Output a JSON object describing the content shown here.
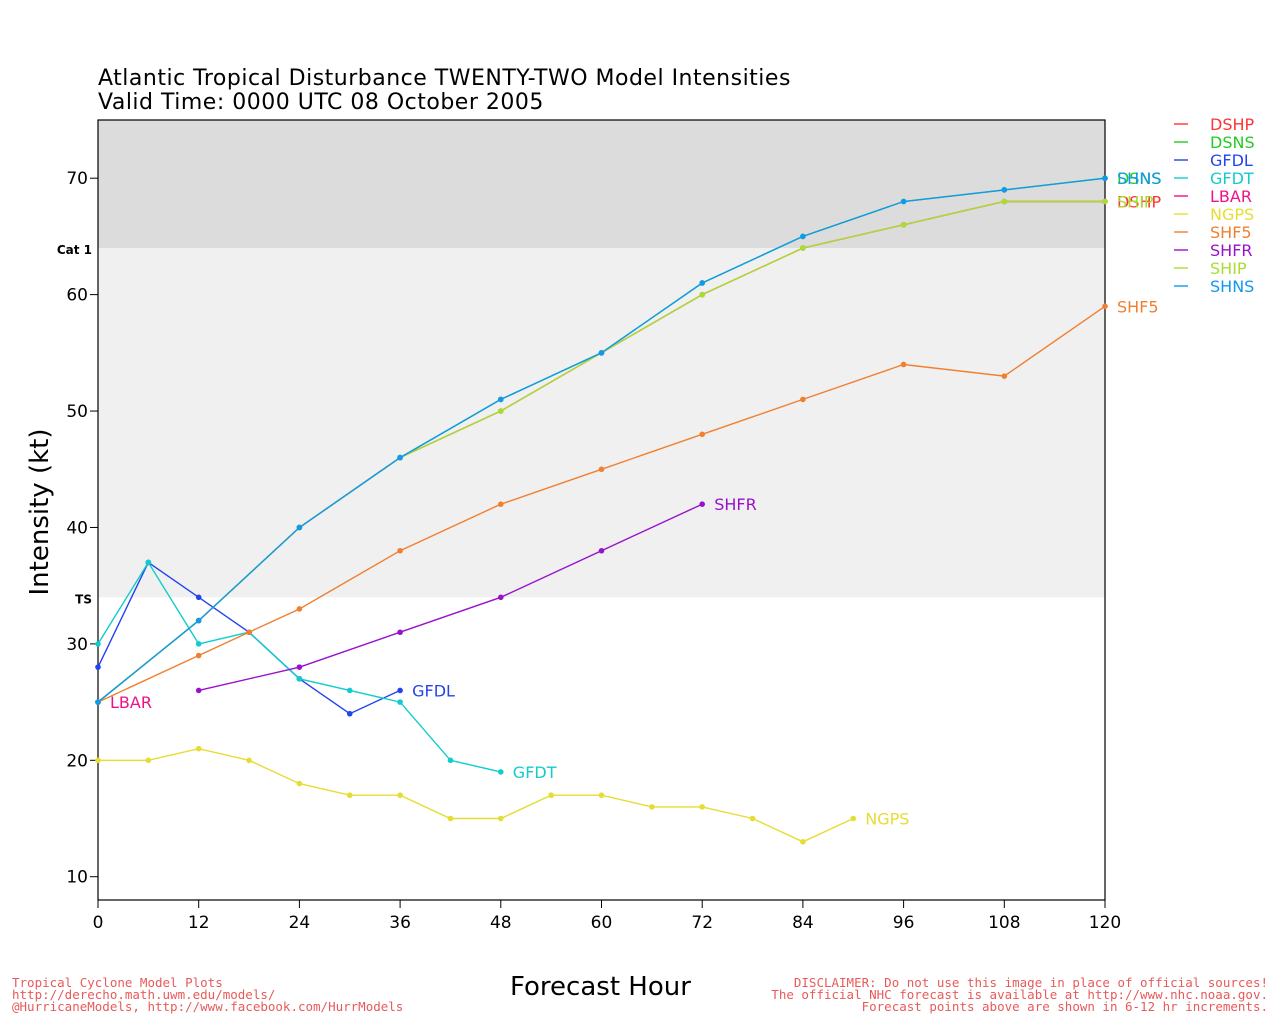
{
  "title": "Atlantic Tropical Disturbance TWENTY-TWO Model Intensities",
  "subtitle": "Valid Time: 0000 UTC 08 October 2005",
  "footer_left": [
    "Tropical Cyclone Model Plots",
    "http://derecho.math.uwm.edu/models/",
    "@HurricaneModels, http://www.facebook.com/HurrModels"
  ],
  "footer_right": [
    "DISCLAIMER: Do not use this image in place of official sources!",
    "The official NHC forecast is available at http://www.nhc.noaa.gov.",
    "Forecast points above are shown in 6-12 hr increments."
  ],
  "colors": {
    "band_cat1": "#dcdcdc",
    "band_ts": "#f0f0f0",
    "footer": "#e85a5a"
  },
  "chart_data": {
    "type": "line",
    "title": "Atlantic Tropical Disturbance TWENTY-TWO Model Intensities",
    "subtitle": "Valid Time: 0000 UTC 08 October 2005",
    "xlabel": "Forecast Hour",
    "ylabel": "Intensity (kt)",
    "xlim": [
      0,
      120
    ],
    "ylim": [
      8,
      75
    ],
    "xticks": [
      0,
      12,
      24,
      36,
      48,
      60,
      72,
      84,
      96,
      108,
      120
    ],
    "yticks": [
      10,
      20,
      30,
      40,
      50,
      60,
      70
    ],
    "bands": [
      {
        "label": "Cat 1",
        "from": 64,
        "to": 75
      },
      {
        "label": "TS",
        "from": 34,
        "to": 64
      }
    ],
    "series": [
      {
        "name": "DSHP",
        "color": "#ff3333",
        "label": "DSHP",
        "points": [
          [
            0,
            25
          ],
          [
            12,
            32
          ],
          [
            24,
            40
          ],
          [
            36,
            46
          ],
          [
            48,
            50
          ],
          [
            60,
            55
          ],
          [
            72,
            60
          ],
          [
            84,
            64
          ],
          [
            96,
            66
          ],
          [
            108,
            68
          ],
          [
            120,
            68
          ]
        ]
      },
      {
        "name": "DSNS",
        "color": "#22cc22",
        "label": "DSNS",
        "points": [
          [
            0,
            25
          ],
          [
            12,
            32
          ],
          [
            24,
            40
          ],
          [
            36,
            46
          ],
          [
            48,
            51
          ],
          [
            60,
            55
          ],
          [
            72,
            61
          ],
          [
            84,
            65
          ],
          [
            96,
            68
          ],
          [
            108,
            69
          ],
          [
            120,
            70
          ]
        ]
      },
      {
        "name": "GFDL",
        "color": "#2244ee",
        "label": "GFDL",
        "points": [
          [
            0,
            28
          ],
          [
            6,
            37
          ],
          [
            12,
            34
          ],
          [
            18,
            31
          ],
          [
            24,
            27
          ],
          [
            30,
            24
          ],
          [
            36,
            26
          ]
        ]
      },
      {
        "name": "GFDT",
        "color": "#11cccc",
        "label": "GFDT",
        "points": [
          [
            0,
            30
          ],
          [
            6,
            37
          ],
          [
            12,
            30
          ],
          [
            18,
            31
          ],
          [
            24,
            27
          ],
          [
            30,
            26
          ],
          [
            36,
            25
          ],
          [
            42,
            20
          ],
          [
            48,
            19
          ]
        ]
      },
      {
        "name": "LBAR",
        "color": "#ee1188",
        "label": "LBAR",
        "points": [
          [
            0,
            25
          ]
        ]
      },
      {
        "name": "NGPS",
        "color": "#e6dd33",
        "label": "NGPS",
        "points": [
          [
            0,
            20
          ],
          [
            6,
            20
          ],
          [
            12,
            21
          ],
          [
            18,
            20
          ],
          [
            24,
            18
          ],
          [
            30,
            17
          ],
          [
            36,
            17
          ],
          [
            42,
            15
          ],
          [
            48,
            15
          ],
          [
            54,
            17
          ],
          [
            60,
            17
          ],
          [
            66,
            16
          ],
          [
            72,
            16
          ],
          [
            78,
            15
          ],
          [
            84,
            13
          ],
          [
            90,
            15
          ]
        ]
      },
      {
        "name": "SHF5",
        "color": "#f08030",
        "label": "SHF5",
        "points": [
          [
            0,
            25
          ],
          [
            12,
            29
          ],
          [
            18,
            31
          ],
          [
            24,
            33
          ],
          [
            36,
            38
          ],
          [
            48,
            42
          ],
          [
            60,
            45
          ],
          [
            72,
            48
          ],
          [
            84,
            51
          ],
          [
            96,
            54
          ],
          [
            108,
            53
          ],
          [
            120,
            59
          ]
        ]
      },
      {
        "name": "SHFR",
        "color": "#9911cc",
        "label": "SHFR",
        "points": [
          [
            12,
            26
          ],
          [
            24,
            28
          ],
          [
            36,
            31
          ],
          [
            48,
            34
          ],
          [
            60,
            38
          ],
          [
            72,
            42
          ]
        ]
      },
      {
        "name": "SHIP",
        "color": "#aadd33",
        "label": "SHIP",
        "points": [
          [
            0,
            25
          ],
          [
            12,
            32
          ],
          [
            24,
            40
          ],
          [
            36,
            46
          ],
          [
            48,
            50
          ],
          [
            60,
            55
          ],
          [
            72,
            60
          ],
          [
            84,
            64
          ],
          [
            96,
            66
          ],
          [
            108,
            68
          ],
          [
            120,
            68
          ]
        ]
      },
      {
        "name": "SHNS",
        "color": "#1199ee",
        "label": "SHNS",
        "points": [
          [
            0,
            25
          ],
          [
            12,
            32
          ],
          [
            24,
            40
          ],
          [
            36,
            46
          ],
          [
            48,
            51
          ],
          [
            60,
            55
          ],
          [
            72,
            61
          ],
          [
            84,
            65
          ],
          [
            96,
            68
          ],
          [
            108,
            69
          ],
          [
            120,
            70
          ]
        ]
      }
    ],
    "legend": {
      "placement": "right"
    }
  }
}
